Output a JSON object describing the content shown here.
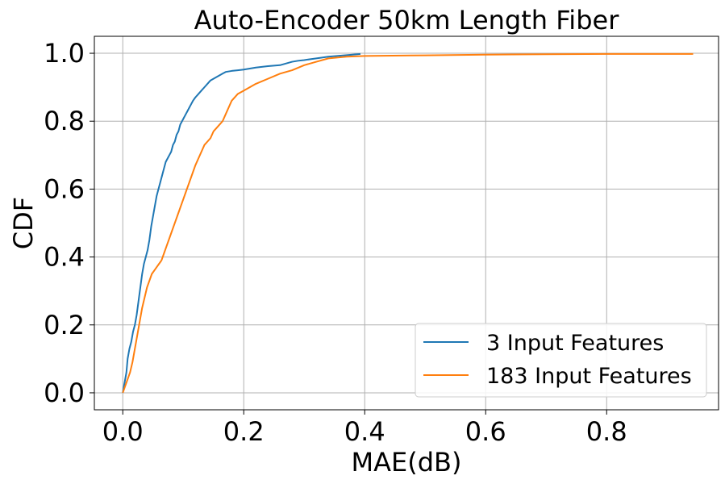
{
  "chart_data": {
    "type": "line",
    "title": "Auto-Encoder 50km Length Fiber",
    "xlabel": "MAE(dB)",
    "ylabel": "CDF",
    "xlim": [
      -0.047,
      0.985
    ],
    "ylim": [
      -0.05,
      1.05
    ],
    "xticks": [
      0.0,
      0.2,
      0.4,
      0.6,
      0.8
    ],
    "xtick_labels": [
      "0.0",
      "0.2",
      "0.4",
      "0.6",
      "0.8"
    ],
    "yticks": [
      0.0,
      0.2,
      0.4,
      0.6,
      0.8,
      1.0
    ],
    "ytick_labels": [
      "0.0",
      "0.2",
      "0.4",
      "0.6",
      "0.8",
      "1.0"
    ],
    "grid": true,
    "legend_position": "lower-right",
    "series": [
      {
        "name": "3 Input Features",
        "color": "#1f77b4",
        "x": [
          0.0,
          0.003,
          0.006,
          0.008,
          0.011,
          0.014,
          0.017,
          0.02,
          0.023,
          0.026,
          0.029,
          0.032,
          0.035,
          0.038,
          0.041,
          0.044,
          0.047,
          0.05,
          0.053,
          0.056,
          0.059,
          0.062,
          0.065,
          0.068,
          0.071,
          0.074,
          0.077,
          0.08,
          0.083,
          0.086,
          0.089,
          0.092,
          0.095,
          0.098,
          0.101,
          0.104,
          0.107,
          0.11,
          0.113,
          0.116,
          0.12,
          0.125,
          0.13,
          0.135,
          0.14,
          0.145,
          0.15,
          0.155,
          0.16,
          0.165,
          0.17,
          0.18,
          0.19,
          0.2,
          0.21,
          0.22,
          0.24,
          0.26,
          0.27,
          0.28,
          0.29,
          0.3,
          0.32,
          0.34,
          0.36,
          0.38,
          0.393
        ],
        "y": [
          0.0,
          0.03,
          0.06,
          0.1,
          0.13,
          0.15,
          0.18,
          0.2,
          0.23,
          0.27,
          0.31,
          0.35,
          0.38,
          0.4,
          0.42,
          0.45,
          0.49,
          0.52,
          0.55,
          0.58,
          0.6,
          0.62,
          0.64,
          0.66,
          0.68,
          0.69,
          0.7,
          0.71,
          0.73,
          0.74,
          0.76,
          0.77,
          0.79,
          0.8,
          0.81,
          0.82,
          0.83,
          0.84,
          0.85,
          0.86,
          0.87,
          0.88,
          0.89,
          0.9,
          0.91,
          0.92,
          0.925,
          0.93,
          0.935,
          0.94,
          0.945,
          0.948,
          0.95,
          0.952,
          0.955,
          0.958,
          0.962,
          0.965,
          0.97,
          0.975,
          0.978,
          0.98,
          0.985,
          0.99,
          0.993,
          0.996,
          0.998
        ]
      },
      {
        "name": "183 Input Features",
        "color": "#ff7f0e",
        "x": [
          0.0,
          0.004,
          0.008,
          0.012,
          0.016,
          0.02,
          0.024,
          0.028,
          0.032,
          0.036,
          0.04,
          0.044,
          0.048,
          0.052,
          0.056,
          0.06,
          0.064,
          0.068,
          0.072,
          0.076,
          0.08,
          0.084,
          0.088,
          0.092,
          0.096,
          0.1,
          0.104,
          0.108,
          0.112,
          0.116,
          0.12,
          0.125,
          0.13,
          0.135,
          0.14,
          0.145,
          0.15,
          0.155,
          0.16,
          0.165,
          0.17,
          0.175,
          0.18,
          0.19,
          0.2,
          0.21,
          0.22,
          0.24,
          0.26,
          0.28,
          0.3,
          0.32,
          0.34,
          0.37,
          0.4,
          0.5,
          0.6,
          0.7,
          0.8,
          0.943
        ],
        "y": [
          0.0,
          0.02,
          0.04,
          0.06,
          0.09,
          0.13,
          0.17,
          0.21,
          0.25,
          0.28,
          0.31,
          0.33,
          0.35,
          0.36,
          0.37,
          0.38,
          0.39,
          0.41,
          0.43,
          0.45,
          0.47,
          0.49,
          0.51,
          0.53,
          0.55,
          0.57,
          0.59,
          0.61,
          0.63,
          0.65,
          0.67,
          0.69,
          0.71,
          0.73,
          0.74,
          0.75,
          0.77,
          0.78,
          0.79,
          0.8,
          0.82,
          0.84,
          0.86,
          0.88,
          0.89,
          0.9,
          0.91,
          0.925,
          0.94,
          0.95,
          0.965,
          0.975,
          0.985,
          0.99,
          0.992,
          0.994,
          0.996,
          0.997,
          0.998,
          0.998
        ]
      }
    ]
  }
}
